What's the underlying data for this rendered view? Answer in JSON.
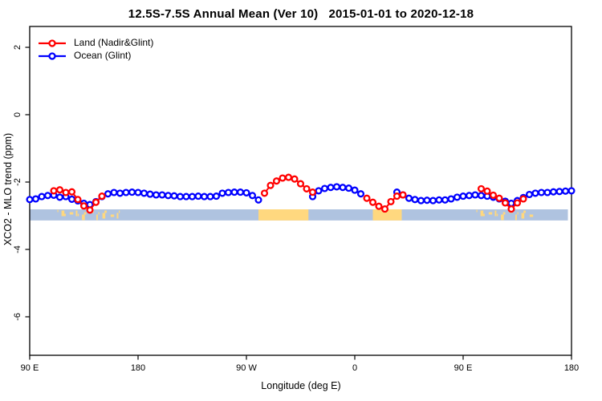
{
  "title": "12.5S-7.5S Annual Mean (Ver 10)   2015-01-01 to 2020-12-18",
  "legend": {
    "items": [
      {
        "label": "Land (Nadir&Glint)",
        "color": "#FF0000"
      },
      {
        "label": "Ocean (Glint)",
        "color": "#0000FF"
      }
    ]
  },
  "chart_data": {
    "type": "line",
    "title": "12.5S-7.5S Annual Mean (Ver 10)   2015-01-01 to 2020-12-18",
    "xlabel": "Longitude (deg E)",
    "ylabel": "XCO2 - MLO trend (ppm)",
    "xlim": [
      90,
      540
    ],
    "ylim": [
      -7.1,
      2.6
    ],
    "grid": false,
    "legend_position": "top-left-inside",
    "x_ticks": [
      {
        "lon": 90,
        "label": "90 E"
      },
      {
        "lon": 180,
        "label": "180"
      },
      {
        "lon": 270,
        "label": "90 W"
      },
      {
        "lon": 360,
        "label": "0"
      },
      {
        "lon": 450,
        "label": "90 E"
      },
      {
        "lon": 540,
        "label": "180"
      }
    ],
    "y_ticks": [
      {
        "value": 2,
        "label": "2"
      },
      {
        "value": 0,
        "label": "0"
      },
      {
        "value": -2,
        "label": "-2"
      },
      {
        "value": -4,
        "label": "-4"
      },
      {
        "value": -6,
        "label": "-6"
      }
    ],
    "series": [
      {
        "name": "Ocean (Glint)",
        "color": "#0000FF",
        "marker": "open-circle",
        "segments": [
          [
            [
              90,
              -2.52
            ],
            [
              95,
              -2.5
            ],
            [
              100,
              -2.43
            ],
            [
              105,
              -2.4
            ],
            [
              110,
              -2.39
            ],
            [
              115,
              -2.45
            ],
            [
              120,
              -2.43
            ],
            [
              125,
              -2.51
            ],
            [
              130,
              -2.56
            ],
            [
              135,
              -2.63
            ],
            [
              140,
              -2.67
            ],
            [
              145,
              -2.58
            ],
            [
              150,
              -2.43
            ],
            [
              155,
              -2.35
            ],
            [
              160,
              -2.31
            ],
            [
              165,
              -2.33
            ],
            [
              170,
              -2.31
            ],
            [
              175,
              -2.3
            ],
            [
              180,
              -2.31
            ],
            [
              185,
              -2.33
            ],
            [
              190,
              -2.36
            ],
            [
              195,
              -2.38
            ],
            [
              200,
              -2.38
            ],
            [
              205,
              -2.4
            ],
            [
              210,
              -2.41
            ],
            [
              215,
              -2.43
            ],
            [
              220,
              -2.43
            ],
            [
              225,
              -2.43
            ],
            [
              230,
              -2.42
            ],
            [
              235,
              -2.43
            ],
            [
              240,
              -2.43
            ],
            [
              245,
              -2.42
            ],
            [
              250,
              -2.33
            ],
            [
              255,
              -2.31
            ],
            [
              260,
              -2.3
            ],
            [
              265,
              -2.3
            ],
            [
              270,
              -2.32
            ],
            [
              275,
              -2.4
            ],
            [
              280,
              -2.53
            ]
          ],
          [
            [
              325,
              -2.43
            ],
            [
              330,
              -2.26
            ],
            [
              335,
              -2.19
            ],
            [
              340,
              -2.16
            ],
            [
              345,
              -2.14
            ],
            [
              350,
              -2.16
            ],
            [
              355,
              -2.18
            ],
            [
              360,
              -2.24
            ],
            [
              365,
              -2.35
            ]
          ],
          [
            [
              395,
              -2.3
            ],
            [
              400,
              -2.38
            ],
            [
              405,
              -2.48
            ],
            [
              410,
              -2.52
            ],
            [
              415,
              -2.55
            ],
            [
              420,
              -2.54
            ],
            [
              425,
              -2.55
            ],
            [
              430,
              -2.53
            ],
            [
              435,
              -2.53
            ],
            [
              440,
              -2.5
            ],
            [
              445,
              -2.45
            ],
            [
              450,
              -2.42
            ],
            [
              455,
              -2.4
            ],
            [
              460,
              -2.38
            ],
            [
              465,
              -2.4
            ],
            [
              470,
              -2.42
            ],
            [
              475,
              -2.45
            ],
            [
              480,
              -2.5
            ],
            [
              485,
              -2.57
            ],
            [
              490,
              -2.63
            ],
            [
              495,
              -2.55
            ],
            [
              500,
              -2.46
            ],
            [
              505,
              -2.37
            ],
            [
              510,
              -2.33
            ],
            [
              515,
              -2.31
            ],
            [
              520,
              -2.31
            ],
            [
              525,
              -2.29
            ],
            [
              530,
              -2.28
            ],
            [
              535,
              -2.27
            ],
            [
              540,
              -2.26
            ]
          ]
        ]
      },
      {
        "name": "Land (Nadir&Glint)",
        "color": "#FF0000",
        "marker": "open-circle",
        "segments": [
          [
            [
              110,
              -2.26
            ],
            [
              115,
              -2.23
            ],
            [
              120,
              -2.31
            ],
            [
              125,
              -2.29
            ],
            [
              130,
              -2.52
            ],
            [
              135,
              -2.71
            ],
            [
              140,
              -2.83
            ],
            [
              145,
              -2.6
            ],
            [
              150,
              -2.42
            ]
          ],
          [
            [
              285,
              -2.33
            ],
            [
              290,
              -2.1
            ],
            [
              295,
              -1.97
            ],
            [
              300,
              -1.88
            ],
            [
              305,
              -1.86
            ],
            [
              310,
              -1.91
            ],
            [
              315,
              -2.05
            ],
            [
              320,
              -2.2
            ],
            [
              325,
              -2.3
            ]
          ],
          [
            [
              370,
              -2.48
            ],
            [
              375,
              -2.6
            ],
            [
              380,
              -2.72
            ],
            [
              385,
              -2.8
            ],
            [
              390,
              -2.58
            ],
            [
              395,
              -2.42
            ],
            [
              400,
              -2.38
            ]
          ],
          [
            [
              465,
              -2.2
            ],
            [
              470,
              -2.27
            ],
            [
              475,
              -2.39
            ],
            [
              480,
              -2.48
            ],
            [
              485,
              -2.62
            ],
            [
              490,
              -2.8
            ],
            [
              495,
              -2.62
            ],
            [
              500,
              -2.5
            ]
          ]
        ]
      }
    ],
    "surface_band": {
      "description": "land/ocean strip along longitude",
      "value_top": -2.81,
      "value_bottom": -3.14,
      "range": [
        90,
        537
      ],
      "ocean_color": "#AFC3E0",
      "land_color": "#FFD87F",
      "solid_land": [
        [
          280,
          321.5
        ],
        [
          375,
          399
        ]
      ],
      "speckle_land": [
        [
          113,
          166
        ],
        [
          461,
          506
        ]
      ]
    }
  },
  "colors": {
    "land_series": "#FF0000",
    "ocean_series": "#0000FF",
    "band_ocean": "#AFC3E0",
    "band_land": "#FFD87F",
    "axis": "#000000",
    "background": "#FFFFFF"
  }
}
